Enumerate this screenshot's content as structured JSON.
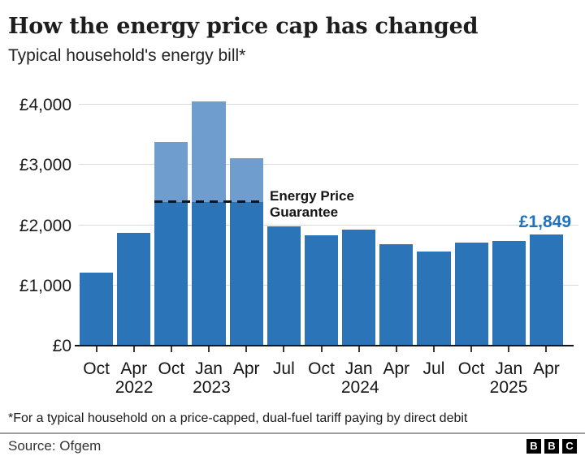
{
  "header": {
    "title": "How the energy price cap has changed",
    "subtitle": "Typical household's energy bill*"
  },
  "chart_data": {
    "type": "bar",
    "title": "How the energy price cap has changed",
    "subtitle": "Typical household's energy bill*",
    "unit": "GBP per year",
    "categories": [
      "Oct 2021",
      "Apr 2022",
      "Oct 2022",
      "Jan 2023",
      "Apr 2023",
      "Jul 2023",
      "Oct 2023",
      "Jan 2024",
      "Apr 2024",
      "Jul 2024",
      "Oct 2024",
      "Jan 2025",
      "Apr 2025"
    ],
    "x_tick_months": [
      "Oct",
      "Apr",
      "Oct",
      "Jan",
      "Apr",
      "Jul",
      "Oct",
      "Jan",
      "Apr",
      "Jul",
      "Oct",
      "Jan",
      "Apr"
    ],
    "x_tick_years": [
      "",
      "2022",
      "",
      "2023",
      "",
      "",
      "",
      "2024",
      "",
      "",
      "",
      "2025",
      ""
    ],
    "values": [
      1216,
      1878,
      3375,
      4059,
      3116,
      1976,
      1834,
      1928,
      1690,
      1568,
      1717,
      1738,
      1849
    ],
    "y_ticks": [
      {
        "value": 0,
        "label": "£0"
      },
      {
        "value": 1000,
        "label": "£1,000"
      },
      {
        "value": 2000,
        "label": "£2,000"
      },
      {
        "value": 3000,
        "label": "£3,000"
      },
      {
        "value": 4000,
        "label": "£4,000"
      }
    ],
    "ylim": [
      0,
      4390
    ],
    "grid": true,
    "legend": false,
    "annotation": {
      "guarantee_label": "Energy Price Guarantee",
      "guarantee_value": 2380,
      "guarantee_span_bars": [
        2,
        4
      ],
      "last_value_label": "£1,849"
    },
    "colors": {
      "bar": "#2a74b7",
      "bar_above_guarantee": "#6f9dce",
      "value_label": "#1e73be",
      "dash_line": "#10151c"
    }
  },
  "footer": {
    "footnote": "*For a typical household on a price-capped, dual-fuel tariff paying by direct debit",
    "source": "Source: Ofgem",
    "logo_letters": [
      "B",
      "B",
      "C"
    ]
  }
}
